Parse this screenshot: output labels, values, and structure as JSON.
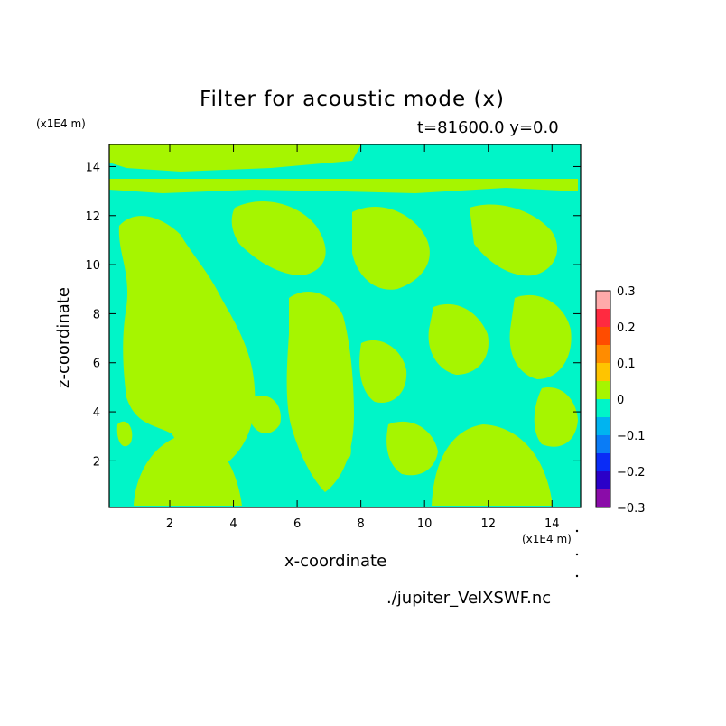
{
  "chart_data": {
    "type": "heatmap",
    "title": "Filter for acoustic mode (x)",
    "subtitle": "t=81600.0 y=0.0",
    "xlabel": "x-coordinate",
    "ylabel": "z-coordinate",
    "x_unit": "(x1E4 m)",
    "y_unit": "(x1E4 m)",
    "xlim": [
      0.1,
      14.9
    ],
    "ylim": [
      0.1,
      14.9
    ],
    "x_ticks": [
      2,
      4,
      6,
      8,
      10,
      12,
      14
    ],
    "y_ticks": [
      2,
      4,
      6,
      8,
      10,
      12,
      14
    ],
    "colorbar": {
      "levels": [
        -0.3,
        -0.25,
        -0.2,
        -0.15,
        -0.1,
        -0.05,
        0,
        0.05,
        0.1,
        0.15,
        0.2,
        0.25,
        0.3
      ],
      "tick_labels": [
        "0.3",
        "0.2",
        "0.1",
        "0",
        "−0.1",
        "−0.2",
        "−0.3"
      ],
      "tick_values": [
        0.3,
        0.2,
        0.1,
        0,
        -0.1,
        -0.2,
        -0.3
      ],
      "colors": [
        "#8a0ca8",
        "#2a00c8",
        "#0a2cf6",
        "#0a7cf6",
        "#00b4f0",
        "#00f5c8",
        "#a6f500",
        "#ffc400",
        "#ff8c00",
        "#ff4c00",
        "#ff2a40",
        "#ffaaaa"
      ]
    },
    "field_colors": {
      "positive": "#a6f500",
      "negative": "#00f5c8"
    },
    "filename": "./jupiter_VelXSWF.nc"
  }
}
